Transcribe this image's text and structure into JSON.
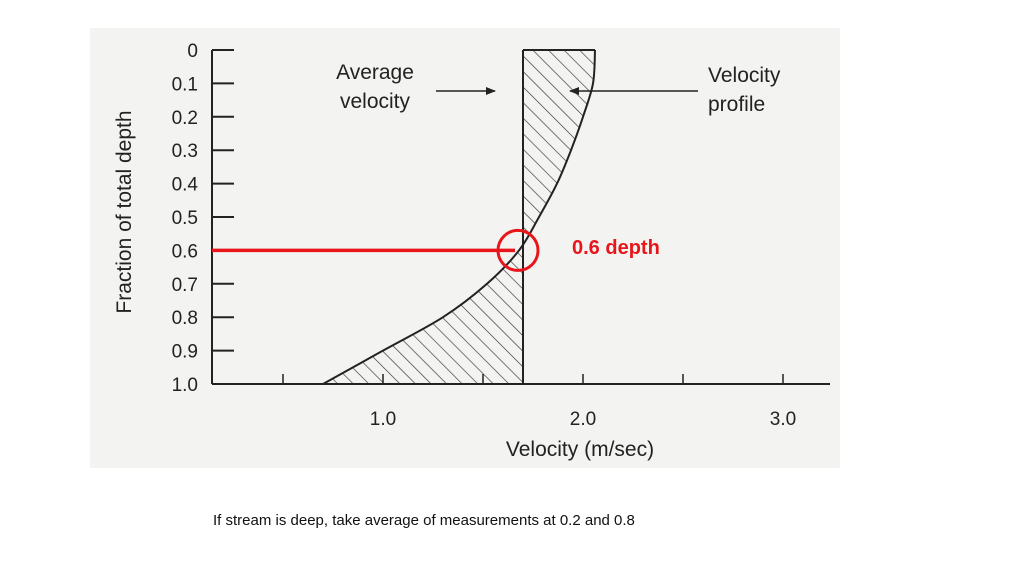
{
  "chart_data": {
    "type": "line",
    "xlabel": "Velocity (m/sec)",
    "ylabel": "Fraction of total depth",
    "xlim": [
      0,
      3.0
    ],
    "ylim": [
      0,
      1.0
    ],
    "y_inverted": true,
    "x_ticks": [
      0.5,
      1.0,
      1.5,
      2.0,
      2.5,
      3.0
    ],
    "x_tick_labels": [
      "1.0",
      "2.0",
      "3.0"
    ],
    "x_tick_label_values": [
      1.0,
      2.0,
      3.0
    ],
    "y_ticks": [
      0,
      0.1,
      0.2,
      0.3,
      0.4,
      0.5,
      0.6,
      0.7,
      0.8,
      0.9,
      1.0
    ],
    "y_tick_labels": [
      "0",
      "0.1",
      "0.2",
      "0.3",
      "0.4",
      "0.5",
      "0.6",
      "0.7",
      "0.8",
      "0.9",
      "1.0"
    ],
    "average_velocity": 1.7,
    "profile": [
      {
        "depth": 0.0,
        "v": 2.06
      },
      {
        "depth": 0.1,
        "v": 2.05
      },
      {
        "depth": 0.2,
        "v": 2.0
      },
      {
        "depth": 0.3,
        "v": 1.94
      },
      {
        "depth": 0.4,
        "v": 1.87
      },
      {
        "depth": 0.5,
        "v": 1.78
      },
      {
        "depth": 0.6,
        "v": 1.68
      },
      {
        "depth": 0.7,
        "v": 1.52
      },
      {
        "depth": 0.8,
        "v": 1.3
      },
      {
        "depth": 0.9,
        "v": 1.0
      },
      {
        "depth": 1.0,
        "v": 0.7
      }
    ],
    "highlight_depth": 0.6,
    "annotations": {
      "average_velocity": [
        "Average",
        "velocity"
      ],
      "velocity_profile": [
        "Velocity",
        "profile"
      ],
      "depth_marker": "0.6 depth"
    },
    "highlight_color": "#e8161b"
  },
  "caption": "If stream is deep, take average of measurements at 0.2 and 0.8"
}
